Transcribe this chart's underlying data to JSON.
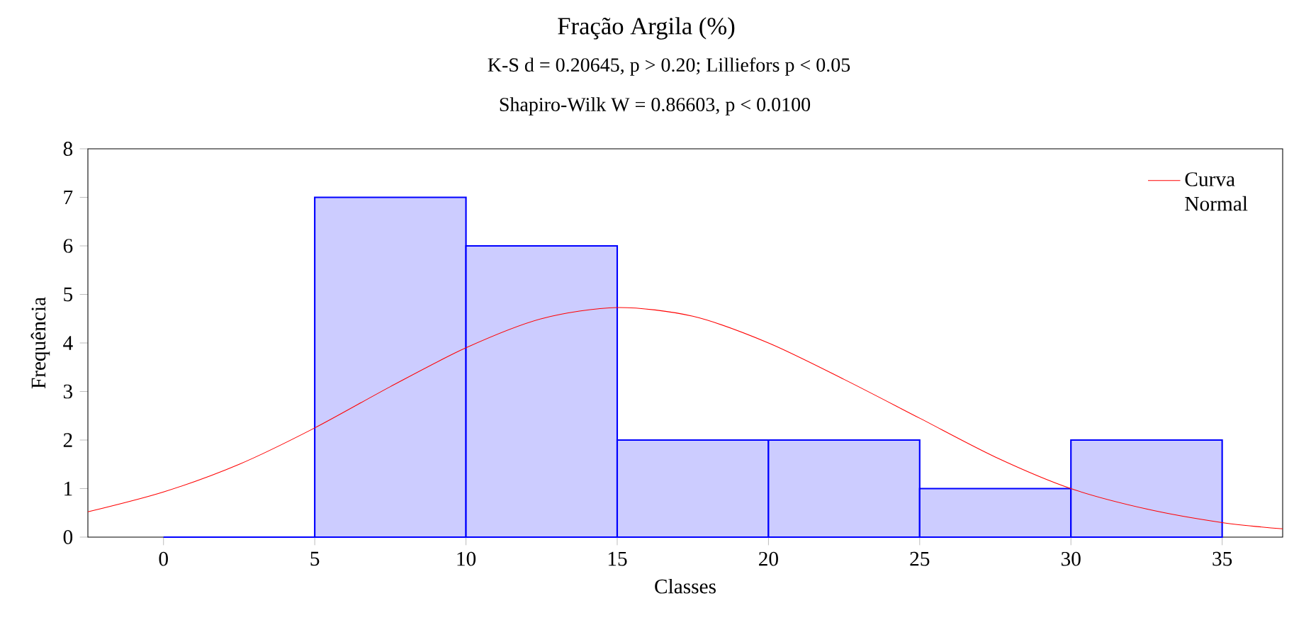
{
  "chart_data": {
    "type": "histogram",
    "title": "Fração Argila (%)",
    "subtitle": "K-S d = 0.20645,  p > 0.20;  Lilliefors p < 0.05",
    "annotations": [
      "Shapiro-Wilk W = 0.86603,  p < 0.0100"
    ],
    "xlabel": "Classes",
    "ylabel": "Frequência",
    "xlim": [
      -2.5,
      37
    ],
    "ylim": [
      0,
      8
    ],
    "xticks": [
      0,
      5,
      10,
      15,
      20,
      25,
      30,
      35
    ],
    "yticks": [
      0,
      1,
      2,
      3,
      4,
      5,
      6,
      7,
      8
    ],
    "grid": false,
    "legend": "top right",
    "series": [
      {
        "color": "#0000ff",
        "bins": [
          0,
          5,
          10,
          15,
          20,
          25,
          30,
          35
        ],
        "values": [
          0,
          7,
          6,
          2,
          2,
          1,
          2
        ]
      },
      {
        "type": "line",
        "name": "Curva Normal",
        "color": "#ff0000",
        "x": [
          -2.5,
          0,
          2.5,
          5,
          7.5,
          10,
          12.5,
          15,
          17.5,
          20,
          22.5,
          25,
          27.5,
          30,
          32.5,
          35,
          37
        ],
        "values": [
          0.52,
          0.93,
          1.5,
          2.25,
          3.1,
          3.9,
          4.5,
          4.73,
          4.55,
          4.0,
          3.25,
          2.45,
          1.65,
          1.0,
          0.58,
          0.3,
          0.17
        ]
      }
    ]
  }
}
